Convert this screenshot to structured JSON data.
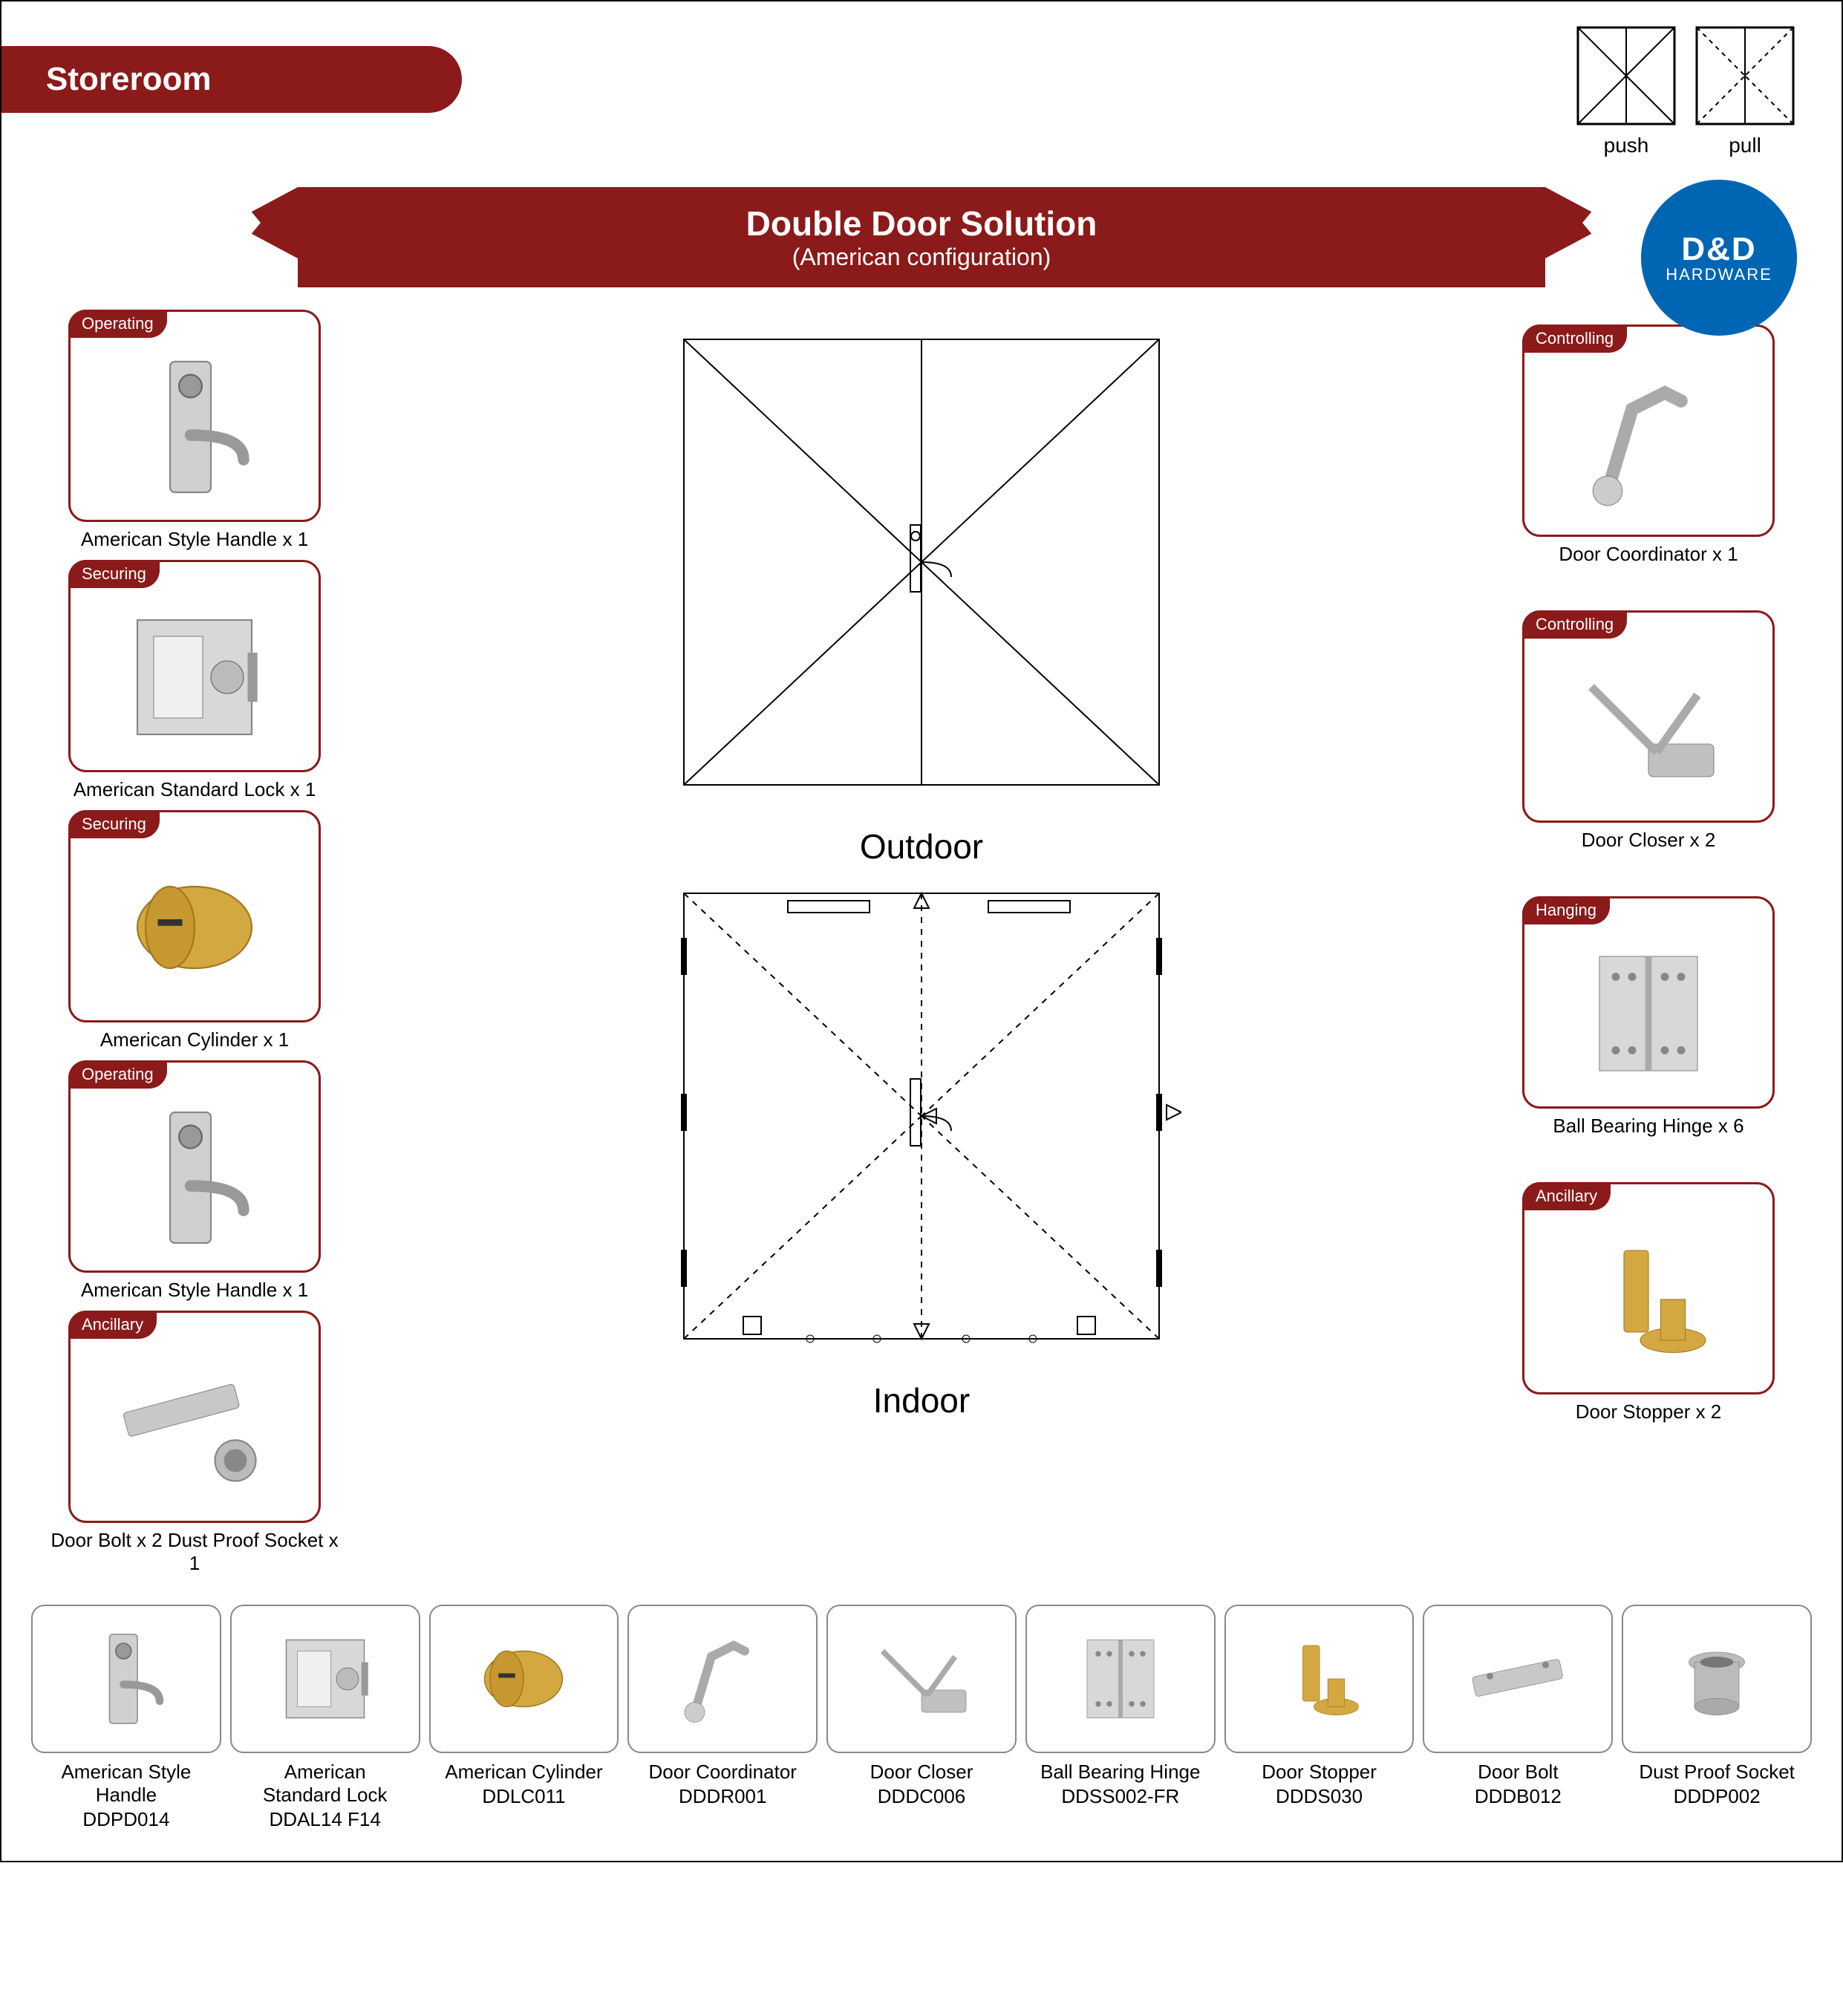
{
  "header": {
    "banner": "Storeroom",
    "push_label": "push",
    "pull_label": "pull"
  },
  "title": {
    "main": "Double Door Solution",
    "sub": "(American configuration)"
  },
  "logo": {
    "main": "D&D",
    "sub": "HARDWARE",
    "bg_color": "#0066b3"
  },
  "colors": {
    "brand_red": "#8b1a1a",
    "border_gray": "#888888",
    "text": "#000000",
    "white": "#ffffff"
  },
  "left_cards": [
    {
      "tag": "Operating",
      "caption": "American Style Handle x 1",
      "icon": "handle"
    },
    {
      "tag": "Securing",
      "caption": "American Standard Lock x 1",
      "icon": "lock"
    },
    {
      "tag": "Securing",
      "caption": "American Cylinder x 1",
      "icon": "cylinder"
    },
    {
      "tag": "Operating",
      "caption": "American Style Handle x 1",
      "icon": "handle"
    },
    {
      "tag": "Ancillary",
      "caption": "Door Bolt x 2   Dust Proof Socket x 1",
      "icon": "bolt"
    }
  ],
  "right_cards": [
    {
      "tag": "Controlling",
      "caption": "Door Coordinator x 1",
      "icon": "coordinator"
    },
    {
      "tag": "Controlling",
      "caption": "Door Closer x 2",
      "icon": "closer"
    },
    {
      "tag": "Hanging",
      "caption": "Ball Bearing Hinge x 6",
      "icon": "hinge"
    },
    {
      "tag": "Ancillary",
      "caption": "Door Stopper x 2",
      "icon": "stopper"
    }
  ],
  "center": {
    "outdoor_label": "Outdoor",
    "indoor_label": "Indoor"
  },
  "products": [
    {
      "name": "American Style Handle",
      "code": "DDPD014",
      "icon": "handle"
    },
    {
      "name": "American\nStandard Lock",
      "code": "DDAL14 F14",
      "icon": "lock"
    },
    {
      "name": "American Cylinder",
      "code": "DDLC011",
      "icon": "cylinder"
    },
    {
      "name": "Door Coordinator",
      "code": "DDDR001",
      "icon": "coordinator"
    },
    {
      "name": "Door Closer",
      "code": "DDDC006",
      "icon": "closer"
    },
    {
      "name": "Ball Bearing Hinge",
      "code": "DDSS002-FR",
      "icon": "hinge"
    },
    {
      "name": "Door Stopper",
      "code": "DDDS030",
      "icon": "stopper"
    },
    {
      "name": "Door Bolt",
      "code": "DDDB012",
      "icon": "doorbolt"
    },
    {
      "name": "Dust Proof Socket",
      "code": "DDDP002",
      "icon": "socket"
    }
  ],
  "diagram": {
    "door_size": 640,
    "line_color": "#000000",
    "dash": "6,6"
  }
}
